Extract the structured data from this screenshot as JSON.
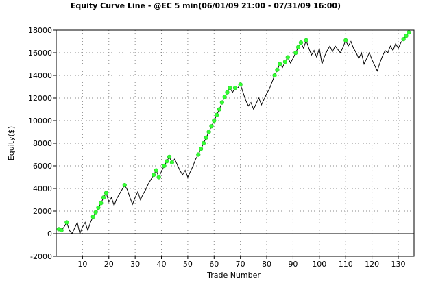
{
  "chart_data": {
    "type": "line",
    "title": "Equity Curve Line - @EC 5 min(06/01/09 21:00 - 07/31/09 16:00)",
    "xlabel": "Trade Number",
    "ylabel": "Equity($)",
    "xlim": [
      0,
      136
    ],
    "ylim": [
      -2000,
      18000
    ],
    "x_ticks": [
      10,
      20,
      30,
      40,
      50,
      60,
      70,
      80,
      90,
      100,
      110,
      120,
      130
    ],
    "y_ticks": [
      -2000,
      0,
      2000,
      4000,
      6000,
      8000,
      10000,
      12000,
      14000,
      16000,
      18000
    ],
    "grid": true,
    "colors": {
      "line": "#000000",
      "marker": "#33ff33",
      "grid": "#8a8a8a",
      "axis": "#000000"
    },
    "series": [
      {
        "values": [
          [
            1,
            400
          ],
          [
            2,
            300
          ],
          [
            3,
            600
          ],
          [
            4,
            1000
          ],
          [
            5,
            300
          ],
          [
            6,
            0
          ],
          [
            7,
            500
          ],
          [
            8,
            1000
          ],
          [
            9,
            0
          ],
          [
            10,
            600
          ],
          [
            11,
            1000
          ],
          [
            12,
            300
          ],
          [
            13,
            1000
          ],
          [
            14,
            1500
          ],
          [
            15,
            1900
          ],
          [
            16,
            2300
          ],
          [
            17,
            2700
          ],
          [
            18,
            3200
          ],
          [
            19,
            3600
          ],
          [
            20,
            2800
          ],
          [
            21,
            3200
          ],
          [
            22,
            2500
          ],
          [
            23,
            3100
          ],
          [
            24,
            3500
          ],
          [
            25,
            3900
          ],
          [
            26,
            4300
          ],
          [
            27,
            3900
          ],
          [
            28,
            3200
          ],
          [
            29,
            2600
          ],
          [
            30,
            3200
          ],
          [
            31,
            3700
          ],
          [
            32,
            3000
          ],
          [
            33,
            3500
          ],
          [
            34,
            3900
          ],
          [
            35,
            4400
          ],
          [
            36,
            4800
          ],
          [
            37,
            5200
          ],
          [
            38,
            5600
          ],
          [
            39,
            5000
          ],
          [
            40,
            5500
          ],
          [
            41,
            6000
          ],
          [
            42,
            6400
          ],
          [
            43,
            6800
          ],
          [
            44,
            6300
          ],
          [
            45,
            6600
          ],
          [
            46,
            6100
          ],
          [
            47,
            5600
          ],
          [
            48,
            5200
          ],
          [
            49,
            5600
          ],
          [
            50,
            5000
          ],
          [
            51,
            5500
          ],
          [
            52,
            6000
          ],
          [
            53,
            6600
          ],
          [
            54,
            7000
          ],
          [
            55,
            7500
          ],
          [
            56,
            8000
          ],
          [
            57,
            8500
          ],
          [
            58,
            9000
          ],
          [
            59,
            9500
          ],
          [
            60,
            10000
          ],
          [
            61,
            10500
          ],
          [
            62,
            11000
          ],
          [
            63,
            11600
          ],
          [
            64,
            12100
          ],
          [
            65,
            12500
          ],
          [
            66,
            12900
          ],
          [
            67,
            12500
          ],
          [
            68,
            12900
          ],
          [
            69,
            12900
          ],
          [
            70,
            13200
          ],
          [
            71,
            12500
          ],
          [
            72,
            11800
          ],
          [
            73,
            11300
          ],
          [
            74,
            11600
          ],
          [
            75,
            11000
          ],
          [
            76,
            11500
          ],
          [
            77,
            12000
          ],
          [
            78,
            11400
          ],
          [
            79,
            11900
          ],
          [
            80,
            12400
          ],
          [
            81,
            12800
          ],
          [
            82,
            13400
          ],
          [
            83,
            14000
          ],
          [
            84,
            14500
          ],
          [
            85,
            15000
          ],
          [
            86,
            14700
          ],
          [
            87,
            15200
          ],
          [
            88,
            15600
          ],
          [
            89,
            15100
          ],
          [
            90,
            15500
          ],
          [
            91,
            16000
          ],
          [
            92,
            16500
          ],
          [
            93,
            16900
          ],
          [
            94,
            16400
          ],
          [
            95,
            17100
          ],
          [
            96,
            16400
          ],
          [
            97,
            15800
          ],
          [
            98,
            16200
          ],
          [
            99,
            15600
          ],
          [
            100,
            16400
          ],
          [
            101,
            15000
          ],
          [
            102,
            15700
          ],
          [
            103,
            16200
          ],
          [
            104,
            16600
          ],
          [
            105,
            16100
          ],
          [
            106,
            16600
          ],
          [
            107,
            16300
          ],
          [
            108,
            16000
          ],
          [
            109,
            16500
          ],
          [
            110,
            17100
          ],
          [
            111,
            16600
          ],
          [
            112,
            17000
          ],
          [
            113,
            16400
          ],
          [
            114,
            16000
          ],
          [
            115,
            15500
          ],
          [
            116,
            16000
          ],
          [
            117,
            15000
          ],
          [
            118,
            15500
          ],
          [
            119,
            16000
          ],
          [
            120,
            15400
          ],
          [
            121,
            14900
          ],
          [
            122,
            14400
          ],
          [
            123,
            15100
          ],
          [
            124,
            15700
          ],
          [
            125,
            16200
          ],
          [
            126,
            16000
          ],
          [
            127,
            16600
          ],
          [
            128,
            16200
          ],
          [
            129,
            16800
          ],
          [
            130,
            16400
          ],
          [
            131,
            16900
          ],
          [
            132,
            17200
          ],
          [
            133,
            17500
          ],
          [
            134,
            17800
          ]
        ],
        "highlighted_x": [
          1,
          2,
          4,
          14,
          15,
          16,
          17,
          18,
          19,
          26,
          37,
          38,
          39,
          41,
          42,
          43,
          44,
          54,
          55,
          56,
          57,
          58,
          59,
          60,
          61,
          62,
          63,
          64,
          65,
          66,
          68,
          70,
          83,
          84,
          85,
          87,
          88,
          91,
          92,
          93,
          95,
          110,
          132,
          133,
          134
        ]
      }
    ]
  }
}
